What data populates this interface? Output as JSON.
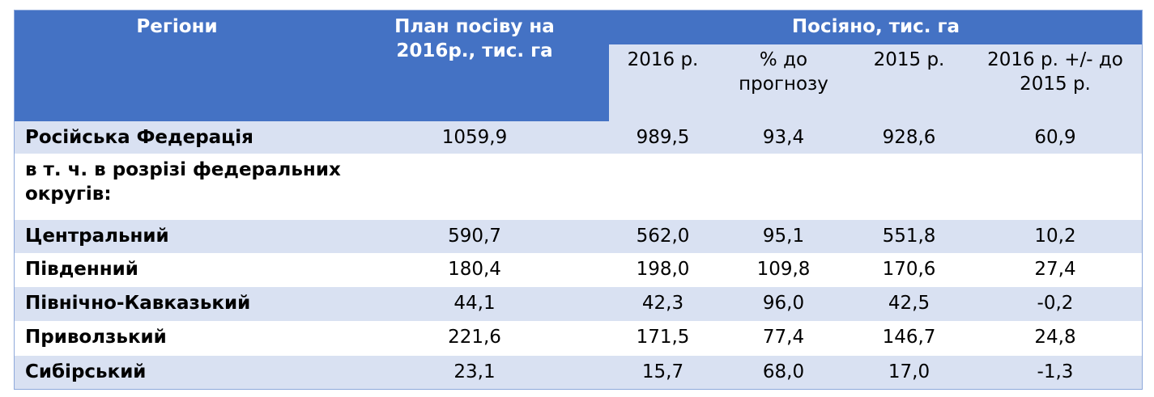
{
  "header": {
    "regions": "Регіони",
    "plan": "План посіву на 2016р., тис. га",
    "sown": "Посіяно, тис. га",
    "subcolumns": [
      "2016 р.",
      "% до прогнозу",
      "2015 р.",
      "2016 р. +/- до 2015 р."
    ]
  },
  "rows": [
    [
      "Російська Федерація",
      "1059,9",
      "989,5",
      "93,4",
      "928,6",
      "60,9"
    ],
    [
      "в т. ч. в розрізі федеральних округів:"
    ],
    [
      "Центральний",
      "590,7",
      "562,0",
      "95,1",
      "551,8",
      "10,2"
    ],
    [
      "Південний",
      "180,4",
      "198,0",
      "109,8",
      "170,6",
      "27,4"
    ],
    [
      "Північно-Кавказький",
      "44,1",
      "42,3",
      "96,0",
      "42,5",
      "-0,2"
    ],
    [
      "Приволзький",
      "221,6",
      "171,5",
      "77,4",
      "146,7",
      "24,8"
    ],
    [
      "Сибірський",
      "23,1",
      "15,7",
      "68,0",
      "17,0",
      "-1,3"
    ]
  ]
}
